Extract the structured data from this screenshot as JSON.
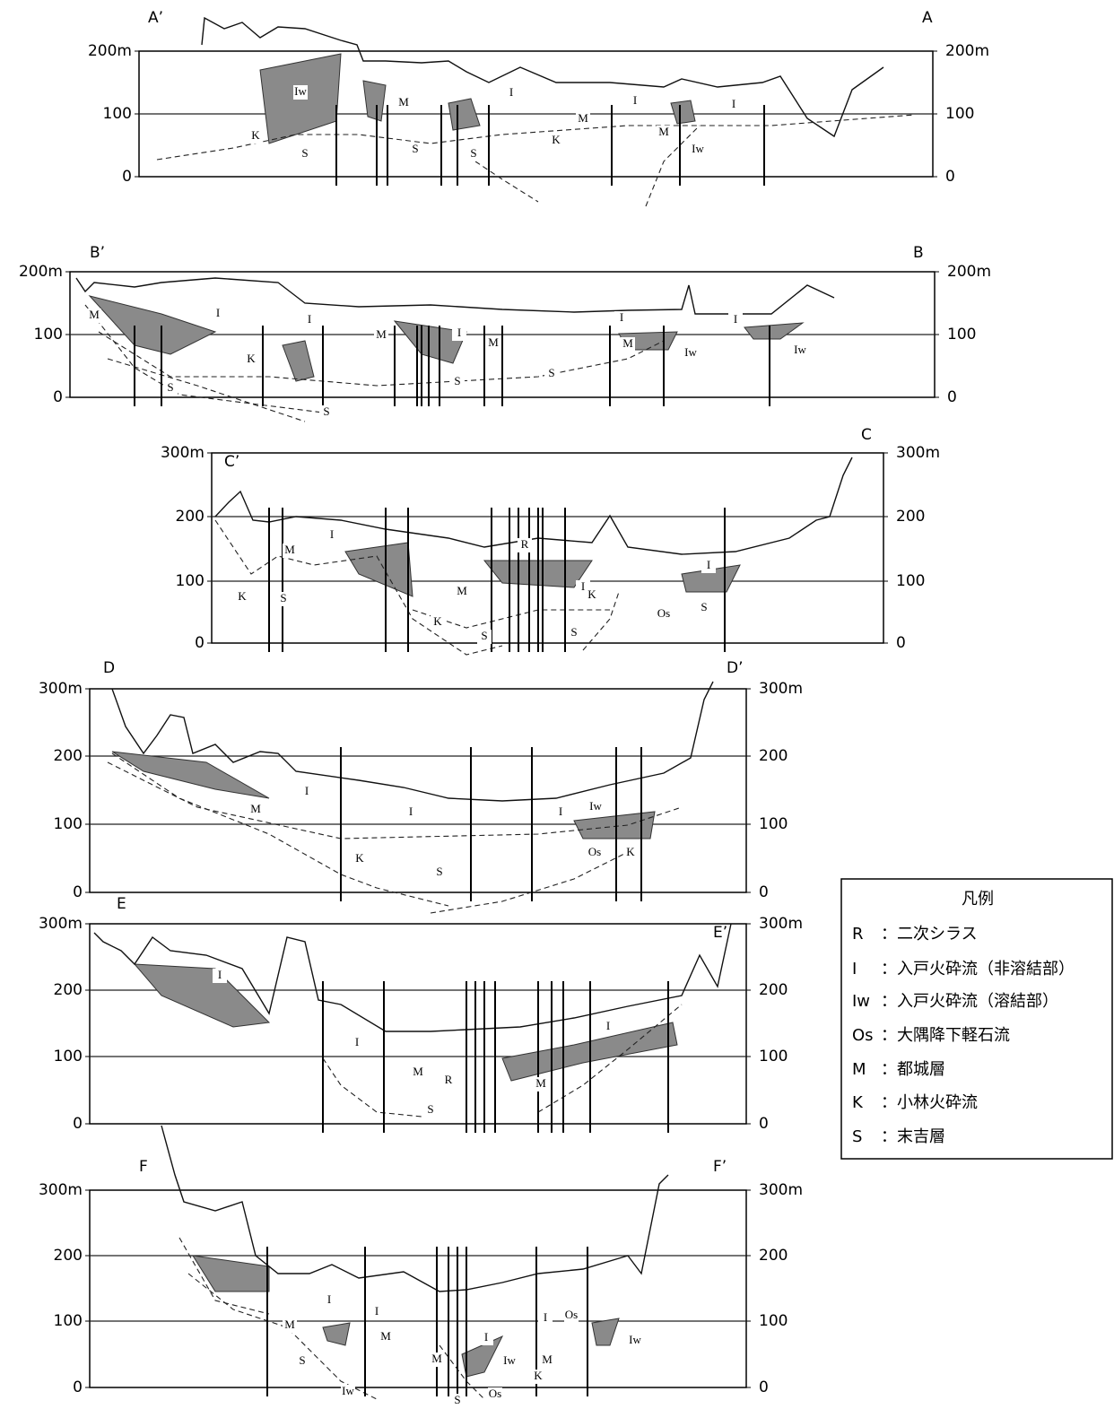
{
  "sections": [
    {
      "left_label": "A’",
      "right_label": "A",
      "left_axis": [
        "200m",
        "100",
        "0"
      ],
      "right_axis": [
        "200m",
        "100",
        "0"
      ],
      "layers": [
        "Iw",
        "M",
        "I",
        "I",
        "I",
        "M",
        "K",
        "S",
        "S",
        "K",
        "M",
        "S",
        "Iw"
      ]
    },
    {
      "left_label": "B’",
      "right_label": "B",
      "left_axis": [
        "200m",
        "100",
        "0"
      ],
      "right_axis": [
        "200m",
        "100",
        "0"
      ],
      "layers": [
        "M",
        "I",
        "I",
        "I",
        "I",
        "I",
        "M",
        "M",
        "M",
        "K",
        "S",
        "S",
        "S",
        "S",
        "Iw",
        "Iw"
      ]
    },
    {
      "left_label": "C’",
      "right_label": "C",
      "left_axis": [
        "300m",
        "200",
        "100",
        "0"
      ],
      "right_axis": [
        "300m",
        "200",
        "100",
        "0"
      ],
      "layers": [
        "I",
        "M",
        "K",
        "S",
        "M",
        "I",
        "K",
        "K",
        "S",
        "S",
        "R",
        "Os",
        "S",
        "I"
      ]
    },
    {
      "left_label": "D",
      "right_label": "D’",
      "left_axis": [
        "300m",
        "200",
        "100",
        "0"
      ],
      "right_axis": [
        "300m",
        "200",
        "100",
        "0"
      ],
      "layers": [
        "I",
        "M",
        "I",
        "I",
        "K",
        "S",
        "Os",
        "K",
        "Iw"
      ]
    },
    {
      "left_label": "E",
      "right_label": "E’",
      "left_axis": [
        "300m",
        "200",
        "100",
        "0"
      ],
      "right_axis": [
        "300m",
        "200",
        "100",
        "0"
      ],
      "layers": [
        "I",
        "I",
        "M",
        "R",
        "M",
        "S",
        "I"
      ]
    },
    {
      "left_label": "F",
      "right_label": "F’",
      "left_axis": [
        "300m",
        "200",
        "100",
        "0"
      ],
      "right_axis": [
        "300m",
        "200",
        "100",
        "0"
      ],
      "layers": [
        "M",
        "I",
        "I",
        "M",
        "S",
        "Iw",
        "I",
        "I",
        "M",
        "Iw",
        "K",
        "Os",
        "S",
        "Os",
        "Iw",
        "M"
      ]
    }
  ],
  "legend": {
    "title": "凡例",
    "entries": [
      {
        "key": "R",
        "desc": "：二次シラス"
      },
      {
        "key": "I",
        "desc": "：入戸火砕流（非溶結部）"
      },
      {
        "key": "Iw",
        "desc": "：入戸火砕流（溶結部）"
      },
      {
        "key": "Os",
        "desc": "：大隅降下軽石流"
      },
      {
        "key": "M",
        "desc": "：都城層"
      },
      {
        "key": "K",
        "desc": "：小林火砕流"
      },
      {
        "key": "S",
        "desc": "：末吉層"
      }
    ]
  }
}
